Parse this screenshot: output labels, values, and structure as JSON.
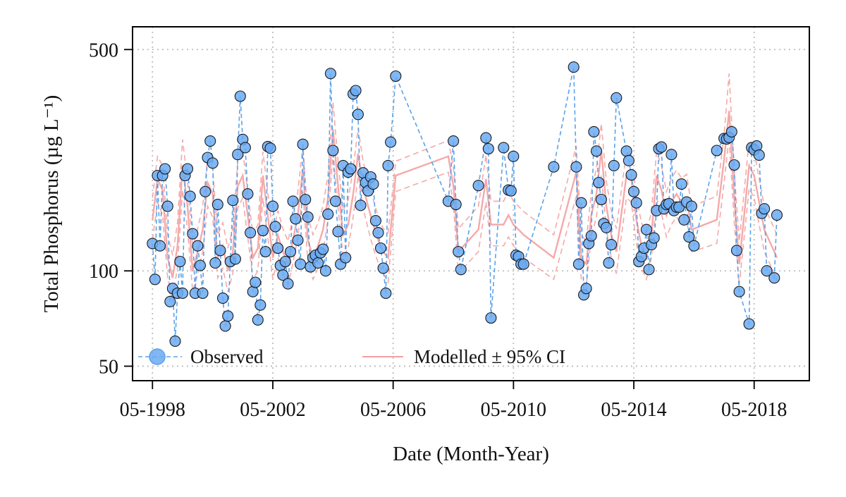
{
  "chart_data": {
    "type": "line",
    "title": "",
    "xlabel": "Date (Month-Year)",
    "ylabel": "Total Phosphorus (µg L⁻¹)",
    "y_scale": "log",
    "ylim": [
      45,
      590
    ],
    "xlim": [
      "1997-09-01",
      "2020-03-01"
    ],
    "x_ticks": [
      "1998-05-01",
      "2002-05-01",
      "2006-05-01",
      "2010-05-01",
      "2014-05-01",
      "2018-05-01"
    ],
    "x_tick_labels": [
      "05-1998",
      "05-2002",
      "05-2006",
      "05-2010",
      "05-2014",
      "05-2018"
    ],
    "y_ticks": [
      50,
      100,
      500
    ],
    "y_tick_labels": [
      "50",
      "100",
      "500"
    ],
    "grid": true,
    "grid_style": "dotted",
    "legend_position": "bottom-left",
    "colors": {
      "observed_fill": "#6aaaf2",
      "observed_line": "#5aa2ea",
      "modelled": "#f4a0a0",
      "grid": "#bdbdbd",
      "frame": "#000000"
    },
    "series": [
      {
        "name": "Observed",
        "style": "points-dashed",
        "x": [
          "1998-05-01",
          "1998-06-01",
          "1998-07-01",
          "1998-08-01",
          "1998-09-01",
          "1998-10-01",
          "1998-11-01",
          "1998-12-01",
          "1999-01-01",
          "1999-02-01",
          "1999-03-01",
          "1999-04-01",
          "1999-05-01",
          "1999-06-01",
          "1999-07-01",
          "1999-08-01",
          "1999-09-01",
          "1999-10-01",
          "1999-11-01",
          "1999-12-01",
          "2000-01-01",
          "2000-02-01",
          "2000-03-01",
          "2000-04-01",
          "2000-05-01",
          "2000-06-01",
          "2000-07-01",
          "2000-08-01",
          "2000-09-01",
          "2000-10-01",
          "2000-11-01",
          "2000-12-01",
          "2001-01-01",
          "2001-02-01",
          "2001-03-01",
          "2001-04-01",
          "2001-05-01",
          "2001-06-01",
          "2001-07-01",
          "2001-08-01",
          "2001-09-01",
          "2001-10-01",
          "2001-11-01",
          "2001-12-01",
          "2002-01-01",
          "2002-02-01",
          "2002-03-01",
          "2002-04-01",
          "2002-05-01",
          "2002-06-01",
          "2002-07-01",
          "2002-08-01",
          "2002-09-01",
          "2002-10-01",
          "2002-11-01",
          "2002-12-01",
          "2003-01-01",
          "2003-02-01",
          "2003-03-01",
          "2003-04-01",
          "2003-05-01",
          "2003-06-01",
          "2003-07-01",
          "2003-08-01",
          "2003-09-01",
          "2003-10-01",
          "2003-11-01",
          "2003-12-01",
          "2004-01-01",
          "2004-02-01",
          "2004-03-01",
          "2004-04-01",
          "2004-05-01",
          "2004-06-01",
          "2004-07-01",
          "2004-08-01",
          "2004-09-01",
          "2004-10-01",
          "2004-11-01",
          "2004-12-01",
          "2005-01-01",
          "2005-02-01",
          "2005-03-01",
          "2005-04-01",
          "2005-05-01",
          "2005-06-01",
          "2005-07-01",
          "2005-08-01",
          "2005-09-01",
          "2005-10-01",
          "2005-11-01",
          "2005-12-01",
          "2006-01-01",
          "2006-02-01",
          "2006-03-01",
          "2006-04-01",
          "2006-06-01",
          "2008-03-01",
          "2008-05-01",
          "2008-06-01",
          "2008-07-01",
          "2008-08-01",
          "2009-03-01",
          "2009-06-01",
          "2009-07-01",
          "2009-08-01",
          "2010-01-01",
          "2010-03-01",
          "2010-04-01",
          "2010-05-01",
          "2010-06-01",
          "2010-07-01",
          "2010-08-01",
          "2010-09-01",
          "2011-09-01",
          "2012-05-01",
          "2012-06-01",
          "2012-07-01",
          "2012-08-01",
          "2012-09-01",
          "2012-10-01",
          "2012-11-01",
          "2012-12-01",
          "2013-01-01",
          "2013-02-01",
          "2013-03-01",
          "2013-04-01",
          "2013-05-01",
          "2013-06-01",
          "2013-07-01",
          "2013-08-01",
          "2013-09-01",
          "2013-10-01",
          "2014-02-01",
          "2014-03-01",
          "2014-04-01",
          "2014-05-01",
          "2014-06-01",
          "2014-07-01",
          "2014-08-01",
          "2014-09-01",
          "2014-10-01",
          "2014-11-01",
          "2014-12-01",
          "2015-01-01",
          "2015-02-01",
          "2015-03-01",
          "2015-04-01",
          "2015-05-01",
          "2015-06-01",
          "2015-07-01",
          "2015-08-01",
          "2015-09-01",
          "2015-10-01",
          "2015-11-01",
          "2015-12-01",
          "2016-01-01",
          "2016-02-01",
          "2016-03-01",
          "2016-04-01",
          "2016-05-01",
          "2017-02-01",
          "2017-05-01",
          "2017-06-01",
          "2017-07-01",
          "2017-08-01",
          "2017-09-01",
          "2017-10-01",
          "2017-11-01",
          "2018-03-01",
          "2018-04-01",
          "2018-05-01",
          "2018-06-01",
          "2018-07-01",
          "2018-08-01",
          "2018-09-01",
          "2018-10-01",
          "2019-01-01",
          "2019-02-01"
        ],
        "values": [
          122,
          94,
          200,
          120,
          200,
          210,
          160,
          80,
          88,
          60,
          85,
          107,
          85,
          200,
          210,
          172,
          131,
          85,
          120,
          104,
          85,
          178,
          228,
          257,
          219,
          106,
          162,
          116,
          82,
          67,
          72,
          107,
          167,
          109,
          233,
          356,
          260,
          245,
          175,
          132,
          86,
          92,
          70,
          78,
          134,
          115,
          247,
          244,
          160,
          138,
          118,
          104,
          97,
          107,
          91,
          115,
          166,
          146,
          125,
          105,
          251,
          168,
          148,
          103,
          110,
          112,
          106,
          114,
          117,
          100,
          151,
          420,
          240,
          166,
          133,
          105,
          215,
          110,
          205,
          210,
          362,
          371,
          312,
          161,
          204,
          190,
          179,
          198,
          188,
          144,
          132,
          118,
          102,
          85,
          215,
          255,
          412,
          166,
          257,
          162,
          115,
          101,
          186,
          263,
          243,
          71,
          245,
          180,
          179,
          230,
          112,
          111,
          105,
          105,
          213,
          440,
          213,
          105,
          164,
          84,
          88,
          122,
          129,
          275,
          239,
          190,
          168,
          141,
          137,
          106,
          121,
          215,
          352,
          239,
          223,
          201,
          178,
          164,
          107,
          111,
          118,
          135,
          101,
          121,
          127,
          155,
          243,
          246,
          157,
          162,
          163,
          233,
          155,
          159,
          159,
          188,
          145,
          165,
          128,
          160,
          120,
          240,
          262,
          261,
          264,
          275,
          216,
          116,
          86,
          68,
          245,
          241,
          248,
          232,
          152,
          157,
          100,
          95,
          150
        ]
      },
      {
        "name": "Modelled ± 95% CI",
        "style": "line-with-ci",
        "x": [
          "1998-05-01",
          "1998-07-01",
          "1998-09-01",
          "1998-11-01",
          "1999-01-01",
          "1999-03-01",
          "1999-05-01",
          "1999-07-01",
          "1999-09-01",
          "1999-11-01",
          "2000-01-01",
          "2000-03-01",
          "2000-05-01",
          "2000-07-01",
          "2000-09-01",
          "2000-11-01",
          "2001-01-01",
          "2001-03-01",
          "2001-05-01",
          "2001-07-01",
          "2001-09-01",
          "2001-11-01",
          "2002-01-01",
          "2002-03-01",
          "2002-05-01",
          "2002-07-01",
          "2002-09-01",
          "2002-11-01",
          "2003-01-01",
          "2003-03-01",
          "2003-05-01",
          "2003-07-01",
          "2003-09-01",
          "2003-11-01",
          "2004-01-01",
          "2004-03-01",
          "2004-05-01",
          "2004-07-01",
          "2004-09-01",
          "2004-11-01",
          "2005-01-01",
          "2005-03-01",
          "2005-05-01",
          "2005-07-01",
          "2005-09-01",
          "2005-11-01",
          "2006-01-01",
          "2006-03-01",
          "2006-06-01",
          "2008-03-01",
          "2008-05-01",
          "2008-07-01",
          "2009-03-01",
          "2009-06-01",
          "2009-08-01",
          "2010-01-01",
          "2010-03-01",
          "2010-05-01",
          "2010-07-01",
          "2010-09-01",
          "2011-09-01",
          "2012-06-01",
          "2012-08-01",
          "2012-10-01",
          "2012-12-01",
          "2013-02-01",
          "2013-04-01",
          "2013-06-01",
          "2013-08-01",
          "2013-10-01",
          "2014-02-01",
          "2014-04-01",
          "2014-06-01",
          "2014-08-01",
          "2014-10-01",
          "2014-12-01",
          "2015-02-01",
          "2015-04-01",
          "2015-06-01",
          "2015-08-01",
          "2015-10-01",
          "2015-12-01",
          "2016-02-01",
          "2016-04-01",
          "2017-02-01",
          "2017-05-01",
          "2017-07-01",
          "2017-09-01",
          "2017-11-01",
          "2018-03-01",
          "2018-05-01",
          "2018-07-01",
          "2018-09-01",
          "2019-01-01",
          "2019-02-01"
        ],
        "values": [
          145,
          195,
          180,
          110,
          95,
          120,
          215,
          160,
          100,
          115,
          135,
          190,
          175,
          110,
          120,
          100,
          115,
          185,
          200,
          150,
          110,
          118,
          200,
          150,
          110,
          130,
          115,
          105,
          125,
          150,
          210,
          125,
          110,
          120,
          135,
          170,
          280,
          185,
          130,
          140,
          175,
          235,
          185,
          160,
          140,
          125,
          115,
          110,
          200,
          230,
          185,
          115,
          135,
          195,
          140,
          140,
          150,
          140,
          135,
          130,
          110,
          205,
          110,
          105,
          150,
          175,
          240,
          160,
          130,
          115,
          200,
          195,
          145,
          120,
          110,
          130,
          200,
          180,
          150,
          165,
          175,
          165,
          170,
          135,
          145,
          225,
          320,
          170,
          105,
          215,
          200,
          165,
          135,
          115,
          110
        ],
        "ci_lower": [
          125,
          165,
          150,
          95,
          82,
          103,
          180,
          135,
          86,
          98,
          115,
          160,
          148,
          95,
          102,
          86,
          98,
          158,
          170,
          128,
          94,
          100,
          170,
          128,
          94,
          110,
          98,
          90,
          106,
          128,
          178,
          106,
          94,
          102,
          115,
          145,
          235,
          158,
          110,
          118,
          148,
          200,
          158,
          136,
          118,
          106,
          98,
          92,
          178,
          205,
          162,
          98,
          115,
          165,
          120,
          120,
          128,
          120,
          115,
          110,
          94,
          172,
          94,
          90,
          128,
          148,
          200,
          135,
          110,
          98,
          170,
          165,
          122,
          102,
          94,
          110,
          170,
          152,
          128,
          140,
          148,
          140,
          145,
          115,
          122,
          190,
          265,
          142,
          90,
          182,
          170,
          140,
          115,
          98,
          93
        ],
        "ci_upper": [
          170,
          230,
          215,
          130,
          112,
          142,
          260,
          192,
          118,
          136,
          160,
          228,
          210,
          130,
          142,
          118,
          136,
          222,
          240,
          178,
          130,
          140,
          238,
          178,
          130,
          155,
          136,
          124,
          148,
          178,
          250,
          148,
          130,
          142,
          160,
          202,
          340,
          222,
          155,
          168,
          210,
          282,
          222,
          190,
          168,
          148,
          136,
          132,
          222,
          258,
          212,
          136,
          160,
          232,
          166,
          166,
          178,
          166,
          160,
          154,
          130,
          248,
          130,
          124,
          178,
          210,
          292,
          192,
          155,
          136,
          238,
          232,
          172,
          142,
          130,
          154,
          238,
          215,
          178,
          196,
          208,
          196,
          202,
          160,
          172,
          270,
          420,
          205,
          124,
          258,
          238,
          196,
          160,
          136,
          130
        ]
      }
    ]
  }
}
